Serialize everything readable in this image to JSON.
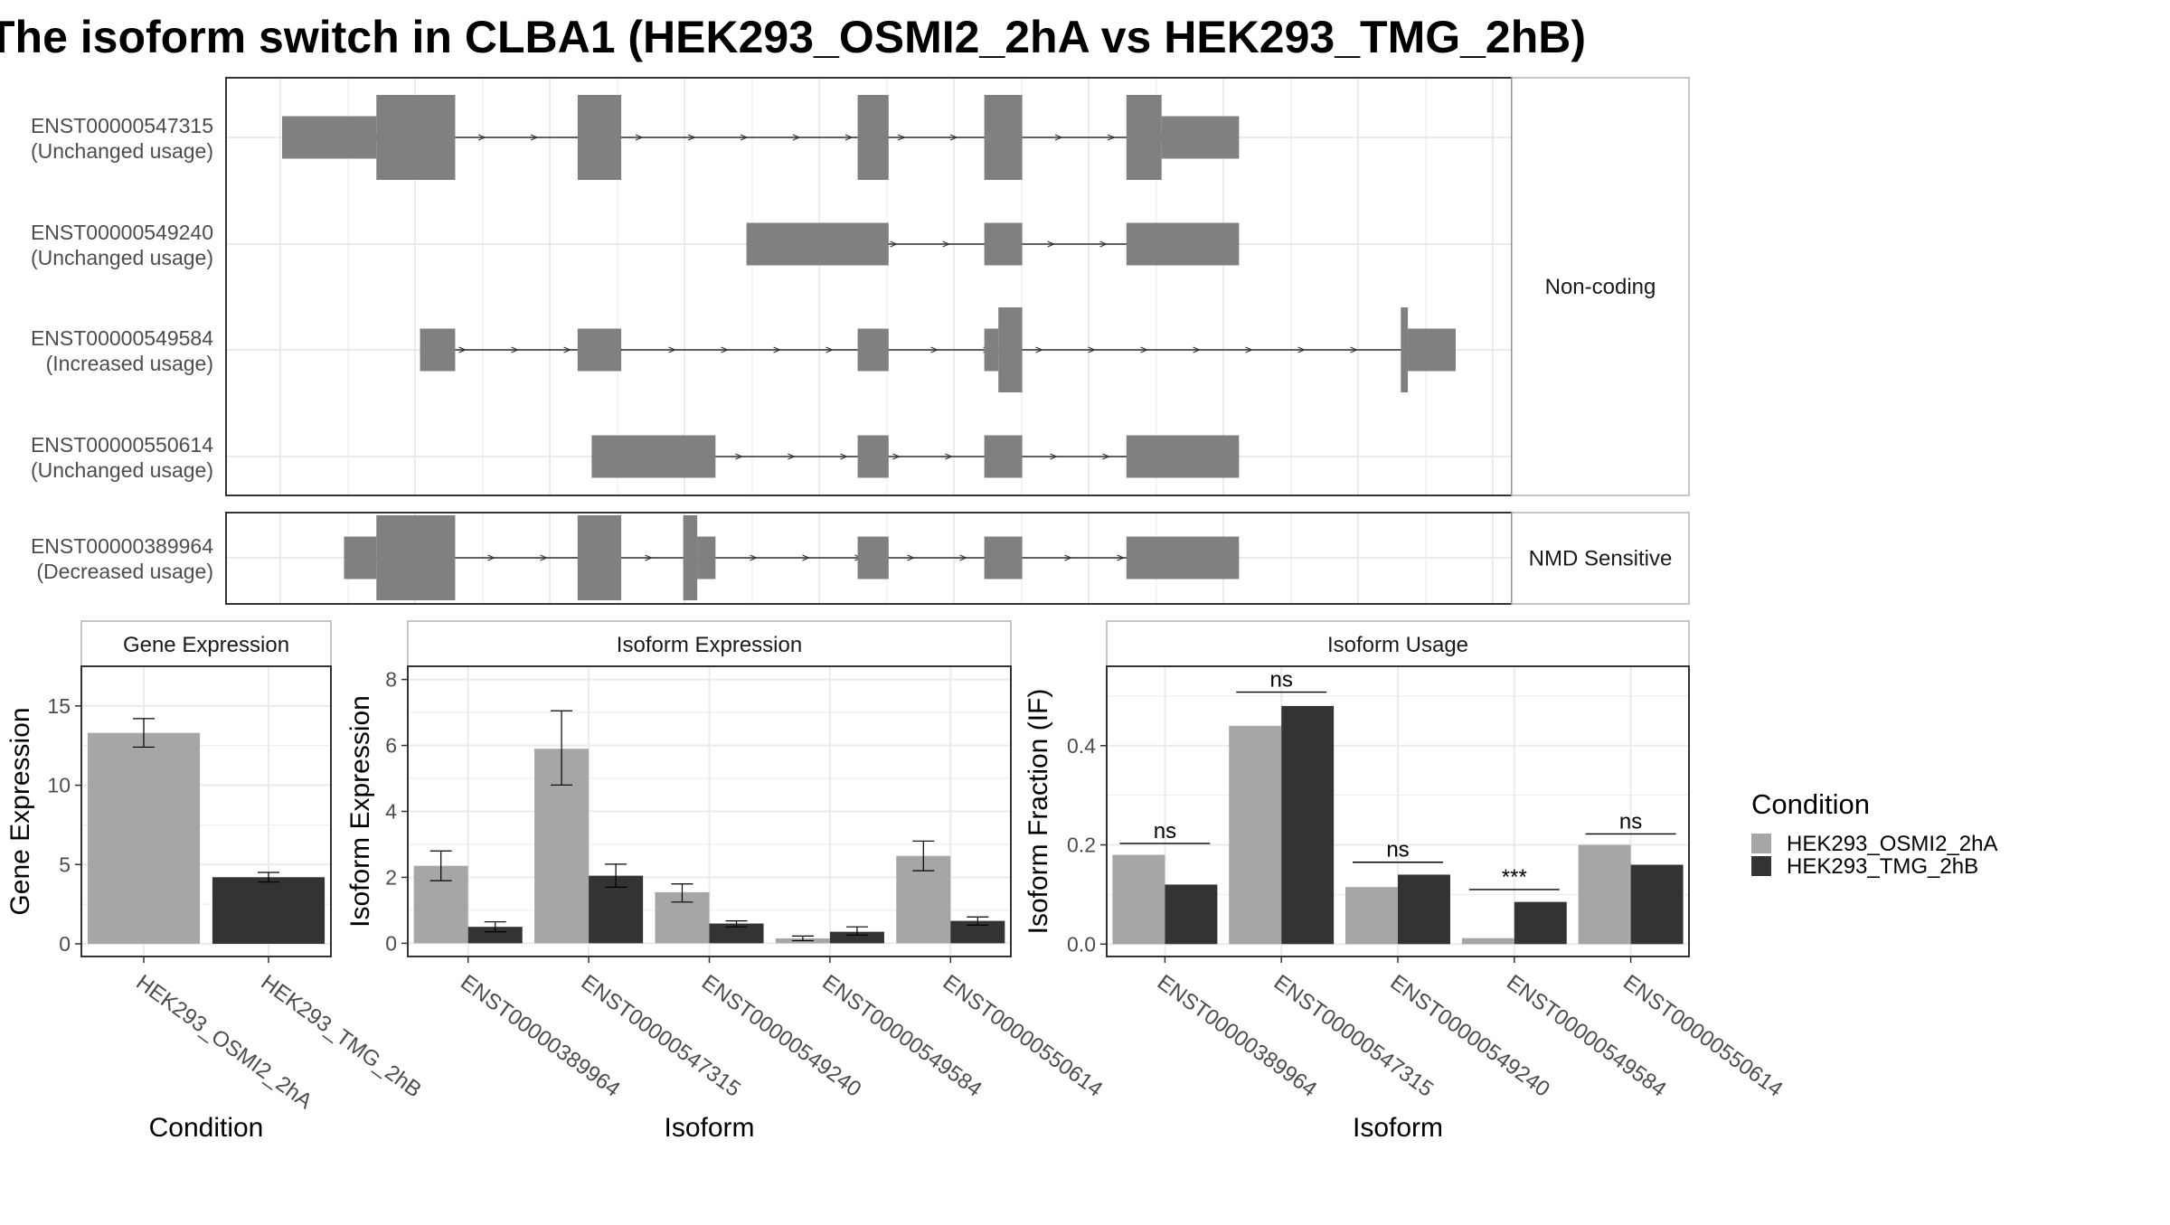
{
  "title": "The isoform switch in CLBA1 (HEK293_OSMI2_2hA vs HEK293_TMG_2hB)",
  "colors": {
    "cond1": "#a6a6a6",
    "cond2": "#333333",
    "exon": "#808080",
    "grid": "#ebebeb",
    "panel_border": "#333333",
    "strip_border": "#b3b3b3",
    "text": "#4d4d4d"
  },
  "legend": {
    "title": "Condition",
    "items": [
      "HEK293_OSMI2_2hA",
      "HEK293_TMG_2hB"
    ]
  },
  "transcripts": {
    "facets": [
      {
        "label": "Non-coding",
        "tracks": [
          {
            "id": "ENST00000547315",
            "usage": "(Unchanged usage)",
            "range": [
              200,
              880
            ],
            "blocks": [
              [
                200,
                267,
                "thin"
              ],
              [
                267,
                323,
                "thick"
              ],
              [
                410,
                441,
                "thick"
              ],
              [
                609,
                631,
                "thick"
              ],
              [
                699,
                726,
                "thick"
              ],
              [
                800,
                825,
                "thick"
              ],
              [
                825,
                880,
                "thin"
              ]
            ]
          },
          {
            "id": "ENST00000549240",
            "usage": "(Unchanged usage)",
            "range": [
              530,
              880
            ],
            "blocks": [
              [
                530,
                631,
                "thin"
              ],
              [
                699,
                726,
                "thin"
              ],
              [
                800,
                880,
                "thin"
              ]
            ]
          },
          {
            "id": "ENST00000549584",
            "usage": "(Increased usage)",
            "range": [
              298,
              1034
            ],
            "blocks": [
              [
                298,
                323,
                "thin"
              ],
              [
                410,
                441,
                "thin"
              ],
              [
                609,
                631,
                "thin"
              ],
              [
                699,
                709,
                "thin"
              ],
              [
                709,
                726,
                "thick"
              ],
              [
                995,
                1000,
                "thick"
              ],
              [
                1000,
                1034,
                "thin"
              ]
            ]
          },
          {
            "id": "ENST00000550614",
            "usage": "(Unchanged usage)",
            "range": [
              420,
              880
            ],
            "blocks": [
              [
                420,
                508,
                "thin"
              ],
              [
                609,
                631,
                "thin"
              ],
              [
                699,
                726,
                "thin"
              ],
              [
                800,
                880,
                "thin"
              ]
            ]
          }
        ]
      },
      {
        "label": "NMD Sensitive",
        "tracks": [
          {
            "id": "ENST00000389964",
            "usage": "(Decreased usage)",
            "range": [
              244,
              880
            ],
            "blocks": [
              [
                244,
                267,
                "thin"
              ],
              [
                267,
                323,
                "thick"
              ],
              [
                410,
                441,
                "thick"
              ],
              [
                485,
                495,
                "thick"
              ],
              [
                495,
                508,
                "thin"
              ],
              [
                609,
                631,
                "thin"
              ],
              [
                699,
                726,
                "thin"
              ],
              [
                800,
                880,
                "thin"
              ]
            ]
          }
        ]
      }
    ]
  },
  "chart_data": [
    {
      "type": "bar",
      "title": "Gene Expression",
      "xlabel": "Condition",
      "ylabel": "Gene Expression",
      "ylim": [
        -0.8,
        17.5
      ],
      "yticks": [
        "0",
        "5",
        "10",
        "15"
      ],
      "categories": [
        "HEK293_OSMI2_2hA",
        "HEK293_TMG_2hB"
      ],
      "series": [
        {
          "values": [
            13.3,
            4.2
          ],
          "errors": [
            [
              12.4,
              14.2
            ],
            [
              3.9,
              4.5
            ]
          ]
        }
      ]
    },
    {
      "type": "bar",
      "title": "Isoform Expression",
      "xlabel": "Isoform",
      "ylabel": "Isoform Expression",
      "ylim": [
        -0.4,
        8.4
      ],
      "yticks": [
        "0",
        "2",
        "4",
        "6",
        "8"
      ],
      "categories": [
        "ENST00000389964",
        "ENST00000547315",
        "ENST00000549240",
        "ENST00000549584",
        "ENST00000550614"
      ],
      "series": [
        {
          "name": "HEK293_OSMI2_2hA",
          "values": [
            2.35,
            5.9,
            1.55,
            0.15,
            2.65
          ],
          "errors": [
            [
              1.9,
              2.8
            ],
            [
              4.8,
              7.05
            ],
            [
              1.25,
              1.8
            ],
            [
              0.08,
              0.22
            ],
            [
              2.2,
              3.1
            ]
          ]
        },
        {
          "name": "HEK293_TMG_2hB",
          "values": [
            0.5,
            2.05,
            0.6,
            0.35,
            0.68
          ],
          "errors": [
            [
              0.35,
              0.65
            ],
            [
              1.7,
              2.4
            ],
            [
              0.5,
              0.68
            ],
            [
              0.25,
              0.5
            ],
            [
              0.55,
              0.8
            ]
          ]
        }
      ]
    },
    {
      "type": "bar",
      "title": "Isoform Usage",
      "xlabel": "Isoform",
      "ylabel": "Isoform Fraction (IF)",
      "ylim": [
        -0.025,
        0.56
      ],
      "yticks": [
        "0.0",
        "0.2",
        "0.4"
      ],
      "categories": [
        "ENST00000389964",
        "ENST00000547315",
        "ENST00000549240",
        "ENST00000549584",
        "ENST00000550614"
      ],
      "series": [
        {
          "name": "HEK293_OSMI2_2hA",
          "values": [
            0.18,
            0.44,
            0.115,
            0.012,
            0.2
          ]
        },
        {
          "name": "HEK293_TMG_2hB",
          "values": [
            0.12,
            0.48,
            0.14,
            0.085,
            0.16
          ]
        }
      ],
      "annotations": [
        {
          "label": "ns",
          "y": 0.203
        },
        {
          "label": "ns",
          "y": 0.508
        },
        {
          "label": "ns",
          "y": 0.165
        },
        {
          "label": "***",
          "y": 0.11
        },
        {
          "label": "ns",
          "y": 0.222
        }
      ]
    }
  ]
}
